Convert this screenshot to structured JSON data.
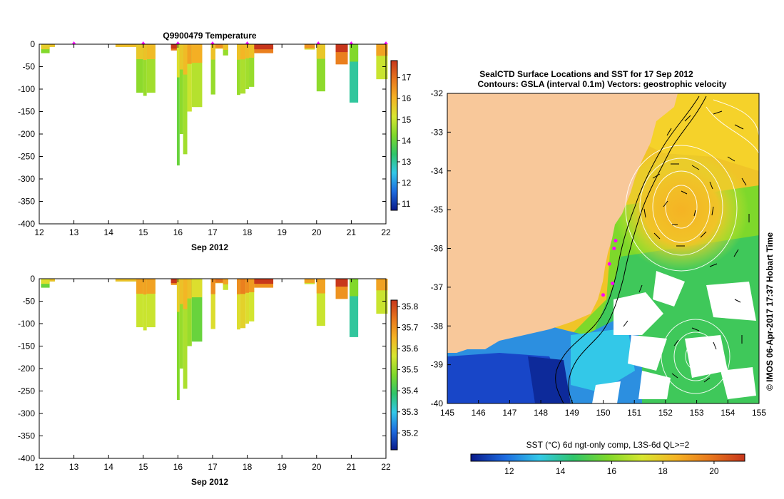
{
  "colors": {
    "temp_scale": [
      "#0a1a8a",
      "#1d6be0",
      "#33c8e8",
      "#2fc56a",
      "#7ed82b",
      "#d7e630",
      "#f5b324",
      "#e8771d",
      "#c7361b"
    ],
    "land": "#f8c89a",
    "ocean": "#1a3fbf",
    "marker": "#ff00ff"
  },
  "chart_data": [
    {
      "type": "heatmap",
      "name": "temperature-profile",
      "title": "Q9900479  Temperature",
      "xlabel": "Sep 2012",
      "x_ticks": [
        12,
        13,
        14,
        15,
        16,
        17,
        18,
        19,
        20,
        21,
        22
      ],
      "xlim": [
        12,
        22
      ],
      "y_ticks": [
        0,
        -50,
        -100,
        -150,
        -200,
        -250,
        -300,
        -350,
        -400
      ],
      "ylim": [
        -400,
        0
      ],
      "colorbar": {
        "ticks": [
          11,
          12,
          13,
          14,
          15,
          16,
          17
        ],
        "range": [
          10.7,
          17.8
        ]
      },
      "casts": [
        {
          "x0": 12.05,
          "x1": 12.3,
          "depth": -20,
          "value": 14.3
        },
        {
          "x0": 12.3,
          "x1": 12.45,
          "depth": -6,
          "value": 14.5
        },
        {
          "x0": 14.2,
          "x1": 14.8,
          "depth": -6,
          "value": 14.6
        },
        {
          "x0": 14.8,
          "x1": 15.0,
          "depth": -108,
          "value": 14.4
        },
        {
          "x0": 15.0,
          "x1": 15.1,
          "depth": -115,
          "value": 14.5
        },
        {
          "x0": 15.1,
          "x1": 15.35,
          "depth": -108,
          "value": 14.6
        },
        {
          "x0": 15.8,
          "x1": 15.97,
          "depth": -14,
          "value": 16.9
        },
        {
          "x0": 15.97,
          "x1": 16.05,
          "depth": -270,
          "value": 14.0
        },
        {
          "x0": 16.05,
          "x1": 16.15,
          "depth": -200,
          "value": 14.4
        },
        {
          "x0": 16.15,
          "x1": 16.27,
          "depth": -245,
          "value": 14.6
        },
        {
          "x0": 16.27,
          "x1": 16.4,
          "depth": -150,
          "value": 15.0
        },
        {
          "x0": 16.4,
          "x1": 16.7,
          "depth": -140,
          "value": 14.8
        },
        {
          "x0": 16.95,
          "x1": 17.08,
          "depth": -112,
          "value": 14.5
        },
        {
          "x0": 17.08,
          "x1": 17.3,
          "depth": -10,
          "value": 15.3
        },
        {
          "x0": 17.3,
          "x1": 17.45,
          "depth": -25,
          "value": 14.5
        },
        {
          "x0": 17.7,
          "x1": 17.8,
          "depth": -113,
          "value": 14.5
        },
        {
          "x0": 17.8,
          "x1": 17.95,
          "depth": -110,
          "value": 14.7
        },
        {
          "x0": 17.95,
          "x1": 18.05,
          "depth": -100,
          "value": 14.6
        },
        {
          "x0": 18.05,
          "x1": 18.2,
          "depth": -95,
          "value": 14.5
        },
        {
          "x0": 18.2,
          "x1": 18.75,
          "depth": -20,
          "value": 16.8
        },
        {
          "x0": 19.65,
          "x1": 19.95,
          "depth": -12,
          "value": 15.2
        },
        {
          "x0": 20.0,
          "x1": 20.25,
          "depth": -105,
          "value": 14.4
        },
        {
          "x0": 20.55,
          "x1": 20.9,
          "depth": -45,
          "value": 16.8
        },
        {
          "x0": 20.95,
          "x1": 21.2,
          "depth": -130,
          "value": 13.0
        },
        {
          "x0": 21.72,
          "x1": 22.05,
          "depth": -78,
          "value": 15.0
        }
      ],
      "markers": [
        13.0,
        15.0,
        16.0,
        17.0,
        18.0,
        20.05,
        21.0,
        22.0
      ]
    },
    {
      "type": "heatmap",
      "name": "salinity-profile",
      "title": "",
      "xlabel": "Sep 2012",
      "x_ticks": [
        12,
        13,
        14,
        15,
        16,
        17,
        18,
        19,
        20,
        21,
        22
      ],
      "xlim": [
        12,
        22
      ],
      "y_ticks": [
        0,
        -50,
        -100,
        -150,
        -200,
        -250,
        -300,
        -350,
        -400
      ],
      "ylim": [
        -400,
        0
      ],
      "colorbar": {
        "ticks": [
          35.2,
          35.3,
          35.4,
          35.5,
          35.6,
          35.7,
          35.8
        ],
        "range": [
          35.12,
          35.83
        ]
      },
      "casts": [
        {
          "x0": 12.05,
          "x1": 12.3,
          "depth": -20,
          "value": 35.45
        },
        {
          "x0": 12.3,
          "x1": 12.45,
          "depth": -6,
          "value": 35.5
        },
        {
          "x0": 14.2,
          "x1": 14.8,
          "depth": -6,
          "value": 35.5
        },
        {
          "x0": 14.8,
          "x1": 15.0,
          "depth": -108,
          "value": 35.55
        },
        {
          "x0": 15.0,
          "x1": 15.1,
          "depth": -115,
          "value": 35.55
        },
        {
          "x0": 15.1,
          "x1": 15.35,
          "depth": -108,
          "value": 35.55
        },
        {
          "x0": 15.8,
          "x1": 15.97,
          "depth": -14,
          "value": 35.7
        },
        {
          "x0": 15.97,
          "x1": 16.05,
          "depth": -270,
          "value": 35.48
        },
        {
          "x0": 16.05,
          "x1": 16.15,
          "depth": -200,
          "value": 35.5
        },
        {
          "x0": 16.15,
          "x1": 16.27,
          "depth": -245,
          "value": 35.52
        },
        {
          "x0": 16.27,
          "x1": 16.4,
          "depth": -150,
          "value": 35.5
        },
        {
          "x0": 16.4,
          "x1": 16.7,
          "depth": -140,
          "value": 35.45
        },
        {
          "x0": 16.95,
          "x1": 17.08,
          "depth": -112,
          "value": 35.58
        },
        {
          "x0": 17.08,
          "x1": 17.3,
          "depth": -10,
          "value": 35.62
        },
        {
          "x0": 17.3,
          "x1": 17.45,
          "depth": -25,
          "value": 35.55
        },
        {
          "x0": 17.7,
          "x1": 17.8,
          "depth": -113,
          "value": 35.58
        },
        {
          "x0": 17.8,
          "x1": 17.95,
          "depth": -110,
          "value": 35.6
        },
        {
          "x0": 17.95,
          "x1": 18.05,
          "depth": -100,
          "value": 35.58
        },
        {
          "x0": 18.05,
          "x1": 18.2,
          "depth": -95,
          "value": 35.56
        },
        {
          "x0": 18.2,
          "x1": 18.75,
          "depth": -20,
          "value": 35.7
        },
        {
          "x0": 19.65,
          "x1": 19.95,
          "depth": -12,
          "value": 35.55
        },
        {
          "x0": 20.0,
          "x1": 20.25,
          "depth": -105,
          "value": 35.55
        },
        {
          "x0": 20.55,
          "x1": 20.9,
          "depth": -45,
          "value": 35.7
        },
        {
          "x0": 20.95,
          "x1": 21.2,
          "depth": -130,
          "value": 35.35
        },
        {
          "x0": 21.72,
          "x1": 22.05,
          "depth": -78,
          "value": 35.55
        }
      ],
      "markers": []
    },
    {
      "type": "heatmap",
      "name": "sst-map",
      "title": "SealCTD Surface Locations and SST for 17 Sep 2012",
      "subtitle": "Contours: GSLA (interval 0.1m) Vectors: geostrophic velocity",
      "x_ticks": [
        145,
        146,
        147,
        148,
        149,
        150,
        151,
        152,
        153,
        154,
        155
      ],
      "xlim": [
        145,
        155
      ],
      "y_ticks": [
        -32,
        -33,
        -34,
        -35,
        -36,
        -37,
        -38,
        -39,
        -40
      ],
      "ylim": [
        -40,
        -32
      ],
      "colorbar_label": "SST (°C) 6d ngt-only comp, L3S-6d QL>=2",
      "colorbar": {
        "ticks": [
          12,
          14,
          16,
          18,
          20
        ],
        "range": [
          10.5,
          21.2
        ]
      },
      "eddies": [
        {
          "name": "warm-core-eddy",
          "lon": 152.5,
          "lat": -35.0
        },
        {
          "name": "southern-eddy",
          "lon": 153.0,
          "lat": -38.8
        }
      ],
      "seal_locations": [
        [
          150.4,
          -35.8
        ],
        [
          150.35,
          -36.0
        ],
        [
          150.2,
          -36.4
        ],
        [
          150.3,
          -36.9
        ],
        [
          150.0,
          -37.2
        ]
      ],
      "credit": "© IMOS 06-Apr-2017 17:37 Hobart Time"
    }
  ]
}
